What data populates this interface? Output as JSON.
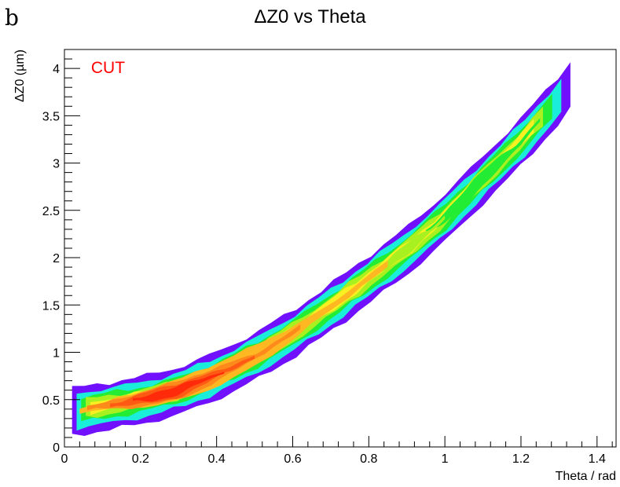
{
  "panel_letter": "b",
  "chart_data": {
    "type": "heatmap",
    "title": "ΔZ0 vs Theta",
    "xlabel": "Theta / rad",
    "ylabel": "ΔZ0 (µm)",
    "annotation": "CUT",
    "annotation_color": "#ff0000",
    "xlim": [
      0,
      1.45
    ],
    "ylim": [
      0,
      4.2
    ],
    "x_ticks": [
      0,
      0.2,
      0.4,
      0.6,
      0.8,
      1,
      1.2,
      1.4
    ],
    "x_tick_labels": [
      "0",
      "0.2",
      "0.4",
      "0.6",
      "0.8",
      "1",
      "1.2",
      "1.4"
    ],
    "y_ticks": [
      0,
      0.5,
      1,
      1.5,
      2,
      2.5,
      3,
      3.5,
      4
    ],
    "y_tick_labels": [
      "0",
      "0.5",
      "1",
      "1.5",
      "2",
      "2.5",
      "3",
      "3.5",
      "4"
    ],
    "colors": {
      "level_1": "#7010ff",
      "level_2": "#1aeeda",
      "level_3": "#22ec33",
      "level_4": "#a8f020",
      "level_5": "#f8f020",
      "level_6": "#ffb822",
      "level_7": "#ff8a1c",
      "level_8": "#ff5a14",
      "level_9": "#ff2a0a"
    },
    "ridge": {
      "x": [
        0.02,
        0.1,
        0.2,
        0.3,
        0.4,
        0.5,
        0.6,
        0.7,
        0.8,
        0.9,
        1.0,
        1.1,
        1.2,
        1.3,
        1.33
      ],
      "y": [
        0.4,
        0.45,
        0.52,
        0.62,
        0.78,
        0.98,
        1.22,
        1.5,
        1.8,
        2.1,
        2.45,
        2.85,
        3.25,
        3.7,
        3.85
      ]
    },
    "contour_levels": [
      {
        "level": 1,
        "name": "outer",
        "upper_offset": 0.22,
        "lower_offset": 0.28
      },
      {
        "level": 2,
        "name": "cyan",
        "upper_offset": 0.16,
        "lower_offset": 0.21
      },
      {
        "level": 3,
        "name": "green",
        "upper_offset": 0.11,
        "lower_offset": 0.15
      },
      {
        "level": 4,
        "name": "lime",
        "upper_offset": 0.08,
        "lower_offset": 0.11
      },
      {
        "level": 5,
        "name": "yellow",
        "upper_offset": 0.05,
        "lower_offset": 0.07
      }
    ],
    "cores": [
      {
        "level": 6,
        "name": "light-orange",
        "x": [
          0.04,
          0.85
        ],
        "half_width": [
          0.11,
          0.14
        ]
      },
      {
        "level": 7,
        "name": "orange",
        "x": [
          0.06,
          0.62
        ],
        "half_width": [
          0.09,
          0.1
        ]
      },
      {
        "level": 8,
        "name": "dark-orange",
        "x": [
          0.12,
          0.5
        ],
        "half_width": [
          0.07,
          0.08
        ]
      },
      {
        "level": 9,
        "name": "red",
        "x": [
          0.18,
          0.42
        ],
        "half_width": [
          0.05,
          0.05
        ]
      }
    ],
    "highlights": [
      {
        "level": 3,
        "name": "green-patch",
        "x": [
          0.95,
          1.25
        ],
        "half_width": [
          0.08,
          0.09
        ]
      },
      {
        "level": 4,
        "name": "lime-patch",
        "x": [
          0.82,
          1.0
        ],
        "half_width": [
          0.06,
          0.07
        ]
      }
    ]
  }
}
